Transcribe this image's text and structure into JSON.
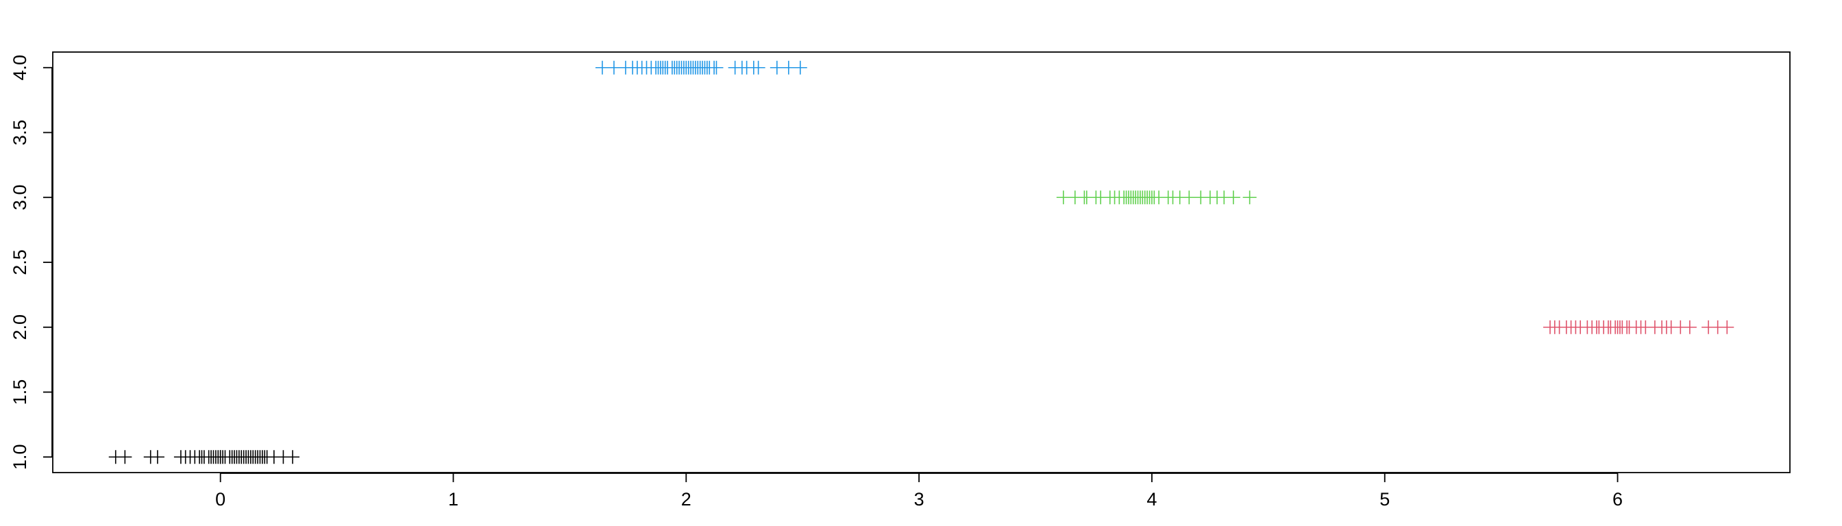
{
  "chart_data": {
    "type": "scatter",
    "title": "",
    "xlabel": "",
    "ylabel": "",
    "xlim": [
      -0.72,
      6.74
    ],
    "ylim": [
      0.88,
      4.12
    ],
    "grid": false,
    "legend": "none",
    "x_ticks": [
      0,
      1,
      2,
      3,
      4,
      5,
      6
    ],
    "x_tick_labels": [
      "0",
      "1",
      "2",
      "3",
      "4",
      "5",
      "6"
    ],
    "y_ticks": [
      1.0,
      1.5,
      2.0,
      2.5,
      3.0,
      3.5,
      4.0
    ],
    "y_tick_labels": [
      "1.0",
      "1.5",
      "2.0",
      "2.5",
      "3.0",
      "3.5",
      "4.0"
    ],
    "marker": "plus",
    "series": [
      {
        "color": "#000000",
        "y": 1,
        "x": [
          -0.45,
          -0.41,
          -0.3,
          -0.27,
          -0.17,
          -0.15,
          -0.13,
          -0.11,
          -0.09,
          -0.08,
          -0.07,
          -0.05,
          -0.04,
          -0.03,
          -0.02,
          -0.01,
          0.0,
          0.0,
          0.01,
          0.02,
          0.04,
          0.05,
          0.06,
          0.07,
          0.08,
          0.09,
          0.1,
          0.11,
          0.12,
          0.13,
          0.14,
          0.15,
          0.16,
          0.17,
          0.18,
          0.19,
          0.2,
          0.23,
          0.27,
          0.31
        ]
      },
      {
        "color": "#2297E6",
        "y": 4,
        "x": [
          1.64,
          1.69,
          1.74,
          1.77,
          1.79,
          1.81,
          1.83,
          1.85,
          1.87,
          1.88,
          1.89,
          1.9,
          1.91,
          1.92,
          1.94,
          1.95,
          1.96,
          1.97,
          1.98,
          1.99,
          2.0,
          2.01,
          2.02,
          2.03,
          2.04,
          2.05,
          2.06,
          2.07,
          2.08,
          2.09,
          2.1,
          2.12,
          2.13,
          2.21,
          2.24,
          2.26,
          2.29,
          2.31,
          2.39,
          2.44,
          2.49
        ]
      },
      {
        "color": "#61D04F",
        "y": 3,
        "x": [
          3.62,
          3.67,
          3.71,
          3.72,
          3.76,
          3.78,
          3.82,
          3.84,
          3.86,
          3.88,
          3.89,
          3.9,
          3.91,
          3.92,
          3.93,
          3.94,
          3.95,
          3.96,
          3.97,
          3.98,
          3.99,
          4.0,
          4.01,
          4.03,
          4.07,
          4.09,
          4.12,
          4.16,
          4.21,
          4.25,
          4.28,
          4.31,
          4.35,
          4.42
        ]
      },
      {
        "color": "#DF536B",
        "y": 2,
        "x": [
          5.71,
          5.73,
          5.75,
          5.78,
          5.8,
          5.82,
          5.84,
          5.87,
          5.89,
          5.91,
          5.92,
          5.94,
          5.96,
          5.97,
          5.99,
          6.0,
          6.01,
          6.02,
          6.04,
          6.05,
          6.08,
          6.1,
          6.12,
          6.16,
          6.19,
          6.21,
          6.23,
          6.27,
          6.31,
          6.39,
          6.43,
          6.47
        ]
      }
    ]
  }
}
